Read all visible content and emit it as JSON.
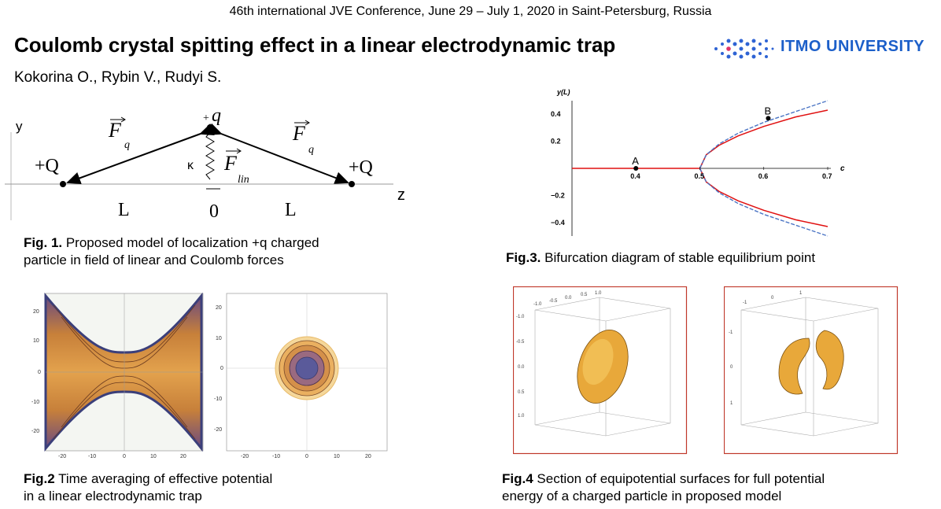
{
  "header": {
    "conference": "46th international  JVE Conference, June 29 – July 1, 2020 in Saint-Petersburg, Russia",
    "title": "Coulomb crystal spitting effect in a linear electrodynamic trap",
    "authors": "Kokorina O., Rybin V., Rudyi S.",
    "logo_text": "ITMO UNIVERSITY"
  },
  "fig1": {
    "axis_y": "y",
    "axis_z": "z",
    "charge_left": "+Q",
    "charge_right": "+Q",
    "charge_top": "q",
    "charge_top_sign": "+",
    "force_q": "F",
    "force_q_sub": "q",
    "force_lin": "F",
    "force_lin_sub": "lin",
    "spring": "κ",
    "dist_left": "L",
    "dist_right": "L",
    "origin": "0",
    "caption_label": "Fig. 1.",
    "caption_text": " Proposed model of localization +q charged",
    "caption_line2": "particle in field of linear and Coulomb  forces"
  },
  "fig2": {
    "left_ticks_x": [
      "-20",
      "-10",
      "0",
      "10",
      "20"
    ],
    "left_ticks_y": [
      "20",
      "10",
      "0",
      "-10",
      "-20"
    ],
    "right_ticks_x": [
      "-20",
      "-10",
      "0",
      "10",
      "20"
    ],
    "right_ticks_y": [
      "20",
      "10",
      "0",
      "-10",
      "-20"
    ],
    "caption_label": "Fig.2",
    "caption_text": " Time  averaging of effective potential",
    "caption_line2": "in a linear electrodynamic  trap"
  },
  "fig3": {
    "caption_label": "Fig.3.",
    "caption_text": " Bifurcation diagram of stable equilibrium  point",
    "colors": {
      "stable": "#e01010",
      "dashed": "#4a74c4"
    }
  },
  "chart_data": {
    "type": "line",
    "title": "",
    "xlabel": "c",
    "ylabel": "y(L)",
    "xlim": [
      0.3,
      0.7
    ],
    "ylim": [
      -0.5,
      0.5
    ],
    "x_ticks": [
      "0.4",
      "0.5",
      "0.6",
      "0.7"
    ],
    "y_ticks": [
      "0.4",
      "0.2",
      "−0.2",
      "−0.4"
    ],
    "point_labels": [
      {
        "label": "A",
        "x": 0.4,
        "y": 0.0
      },
      {
        "label": "B",
        "x": 0.607,
        "y": 0.37
      }
    ],
    "series": [
      {
        "style": "solid-red",
        "x": [
          0.3,
          0.4,
          0.5
        ],
        "y": [
          0,
          0,
          0
        ]
      },
      {
        "style": "solid-red",
        "x": [
          0.5,
          0.51,
          0.53,
          0.56,
          0.6,
          0.65,
          0.7
        ],
        "y": [
          0,
          0.1,
          0.17,
          0.24,
          0.31,
          0.38,
          0.43
        ]
      },
      {
        "style": "solid-red",
        "x": [
          0.5,
          0.51,
          0.53,
          0.56,
          0.6,
          0.65,
          0.7
        ],
        "y": [
          0,
          -0.1,
          -0.17,
          -0.24,
          -0.31,
          -0.38,
          -0.43
        ]
      },
      {
        "style": "dashed-blue",
        "x": [
          0.5,
          0.51,
          0.53,
          0.56,
          0.6,
          0.65,
          0.7
        ],
        "y": [
          0,
          0.1,
          0.18,
          0.26,
          0.34,
          0.42,
          0.5
        ]
      },
      {
        "style": "dashed-blue",
        "x": [
          0.5,
          0.51,
          0.53,
          0.56,
          0.6,
          0.65,
          0.7
        ],
        "y": [
          0,
          -0.1,
          -0.18,
          -0.26,
          -0.34,
          -0.42,
          -0.5
        ]
      }
    ]
  },
  "fig4": {
    "left_top_ticks": [
      "-1.0",
      "-0.5",
      "0.0",
      "0.5",
      "1.0"
    ],
    "left_side_ticks": [
      "-1.0",
      "-0.5",
      "0.0",
      "0.5",
      "1.0"
    ],
    "right_top_ticks": [
      "-1",
      "0",
      "1"
    ],
    "right_side_ticks": [
      "-1",
      "0",
      "1"
    ],
    "caption_label": "Fig.4",
    "caption_text": " Section of equipotential surfaces for full potential",
    "caption_line2": "energy of a charged particle in proposed model"
  }
}
